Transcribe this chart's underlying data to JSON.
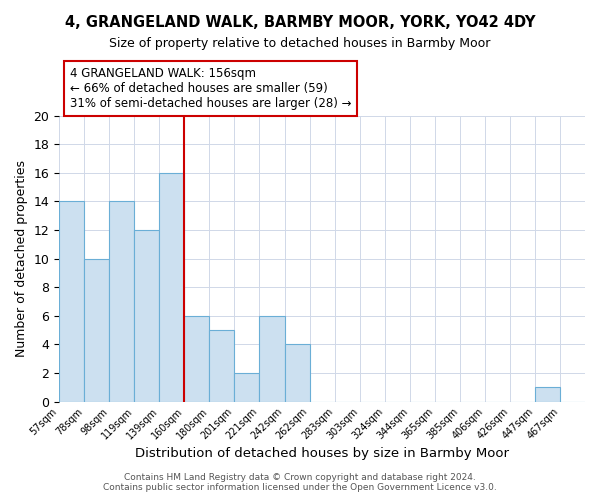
{
  "title": "4, GRANGELAND WALK, BARMBY MOOR, YORK, YO42 4DY",
  "subtitle": "Size of property relative to detached houses in Barmby Moor",
  "xlabel": "Distribution of detached houses by size in Barmby Moor",
  "ylabel": "Number of detached properties",
  "bin_labels": [
    "57sqm",
    "78sqm",
    "98sqm",
    "119sqm",
    "139sqm",
    "160sqm",
    "180sqm",
    "201sqm",
    "221sqm",
    "242sqm",
    "262sqm",
    "283sqm",
    "303sqm",
    "324sqm",
    "344sqm",
    "365sqm",
    "385sqm",
    "406sqm",
    "426sqm",
    "447sqm",
    "467sqm"
  ],
  "bar_values": [
    14,
    10,
    14,
    12,
    16,
    6,
    5,
    2,
    6,
    4,
    0,
    0,
    0,
    0,
    0,
    0,
    0,
    0,
    0,
    1,
    0
  ],
  "bar_color": "#cce0f0",
  "bar_edge_color": "#6aaed6",
  "vline_x_index": 5,
  "vline_color": "#cc0000",
  "ylim": [
    0,
    20
  ],
  "yticks": [
    0,
    2,
    4,
    6,
    8,
    10,
    12,
    14,
    16,
    18,
    20
  ],
  "annotation_box_text": "4 GRANGELAND WALK: 156sqm\n← 66% of detached houses are smaller (59)\n31% of semi-detached houses are larger (28) →",
  "footer_line1": "Contains HM Land Registry data © Crown copyright and database right 2024.",
  "footer_line2": "Contains public sector information licensed under the Open Government Licence v3.0.",
  "background_color": "#ffffff",
  "grid_color": "#d0d8e8"
}
